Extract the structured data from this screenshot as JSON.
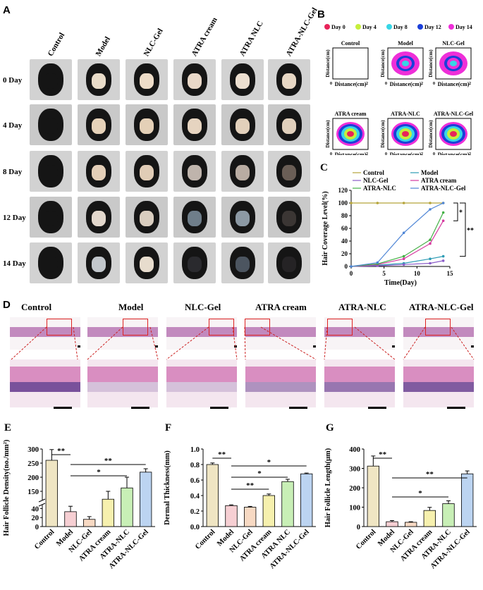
{
  "panel_a": {
    "letter": "A",
    "groups": [
      "Control",
      "Model",
      "NLC-Gel",
      "ATRA cream",
      "ATRA NLC",
      "ATRA-NLC-Gel"
    ],
    "days": [
      "0 Day",
      "4 Day",
      "8 Day",
      "12 Day",
      "14 Day"
    ]
  },
  "panel_b": {
    "letter": "B",
    "legend": [
      "Day 0",
      "Day 4",
      "Day 8",
      "Day 12",
      "Day 14"
    ],
    "legend_colors": [
      "#e8245a",
      "#c6ef3c",
      "#37d6e6",
      "#1b3fd9",
      "#ee2fd8"
    ],
    "plots": [
      "Control",
      "Model",
      "NLC-Gel",
      "ATRA cream",
      "ATRA-NLC",
      "ATRA-NLC-Gel"
    ],
    "xlabel": "Distance(cm)",
    "ylabel": "Distance(cm)",
    "tick0": "0",
    "tick2": "2"
  },
  "panel_d": {
    "letter": "D",
    "groups": [
      "Control",
      "Model",
      "NLC-Gel",
      "ATRA cream",
      "ATRA-NLC",
      "ATRA-NLC-Gel"
    ]
  },
  "chart_data": [
    {
      "id": "C",
      "type": "line",
      "letter": "C",
      "xlabel": "Time(Day)",
      "ylabel": "Hair Coverage Level(%)",
      "xlim": [
        0,
        15
      ],
      "ylim": [
        0,
        120
      ],
      "xticks": [
        "0",
        "5",
        "10",
        "15"
      ],
      "yticks": [
        "0",
        "20",
        "40",
        "60",
        "80",
        "100",
        "120"
      ],
      "x": [
        0,
        4,
        8,
        12,
        14
      ],
      "series": [
        {
          "name": "Control",
          "color": "#b5a43a",
          "values": [
            100,
            100,
            100,
            100,
            100
          ]
        },
        {
          "name": "Model",
          "color": "#2c9bb4",
          "values": [
            0,
            2,
            5,
            12,
            16
          ]
        },
        {
          "name": "NLC-Gel",
          "color": "#8a5cc8",
          "values": [
            0,
            1,
            3,
            5,
            9
          ]
        },
        {
          "name": "ATRA cream",
          "color": "#d63aa0",
          "values": [
            0,
            3,
            12,
            36,
            72
          ]
        },
        {
          "name": "ATRA-NLC",
          "color": "#43b045",
          "values": [
            0,
            4,
            16,
            42,
            85
          ]
        },
        {
          "name": "ATRA-NLC-Gel",
          "color": "#4f86d6",
          "values": [
            0,
            6,
            53,
            90,
            100
          ]
        }
      ],
      "annotations": [
        "*",
        "**"
      ]
    },
    {
      "id": "E",
      "type": "bar",
      "letter": "E",
      "ylabel": "Hair Follicle Density(no./mm²)",
      "categories": [
        "Control",
        "Model",
        "NLC-Gel",
        "ATRA cream",
        "ATRA-NLC",
        "ATRA-NLC-Gel"
      ],
      "values": [
        260,
        33,
        16,
        122,
        162,
        218
      ],
      "errors": [
        38,
        12,
        6,
        28,
        38,
        12
      ],
      "yticks": [
        "0",
        "20",
        "40",
        "150",
        "200",
        "250",
        "300"
      ],
      "colors": [
        "#efe5c3",
        "#f6cfd3",
        "#f7d9c3",
        "#f6f0ae",
        "#c8efb6",
        "#bcd4f1"
      ],
      "significance": [
        "**",
        "*",
        "**"
      ]
    },
    {
      "id": "F",
      "type": "bar",
      "letter": "F",
      "ylabel": "Dermal Thickness(mm)",
      "categories": [
        "Control",
        "Model",
        "NLC-Gel",
        "ATRA cream",
        "ATRA NLC",
        "ATRA-NLC-Gel"
      ],
      "values": [
        0.8,
        0.27,
        0.25,
        0.4,
        0.58,
        0.68
      ],
      "errors": [
        0.02,
        0.01,
        0.01,
        0.02,
        0.03,
        0.01
      ],
      "ylim": [
        0,
        1.0
      ],
      "yticks": [
        "0.0",
        "0.2",
        "0.4",
        "0.6",
        "0.8",
        "1.0"
      ],
      "colors": [
        "#efe5c3",
        "#f6cfd3",
        "#f7d9c3",
        "#f6f0ae",
        "#c8efb6",
        "#bcd4f1"
      ],
      "significance": [
        "**",
        "*",
        "*",
        "**"
      ]
    },
    {
      "id": "G",
      "type": "bar",
      "letter": "G",
      "ylabel": "Hair Follicle Length(μm)",
      "categories": [
        "Control",
        "Model",
        "NLC-Gel",
        "ATRA cream",
        "ATRA-NLC",
        "ATRA-NLC-Gel"
      ],
      "values": [
        312,
        25,
        22,
        83,
        118,
        272
      ],
      "errors": [
        52,
        6,
        3,
        16,
        15,
        15
      ],
      "ylim": [
        0,
        400
      ],
      "yticks": [
        "0",
        "100",
        "200",
        "300",
        "400"
      ],
      "colors": [
        "#efe5c3",
        "#f6cfd3",
        "#f7d9c3",
        "#f6f0ae",
        "#c8efb6",
        "#bcd4f1"
      ],
      "significance": [
        "**",
        "*",
        "**"
      ]
    }
  ]
}
